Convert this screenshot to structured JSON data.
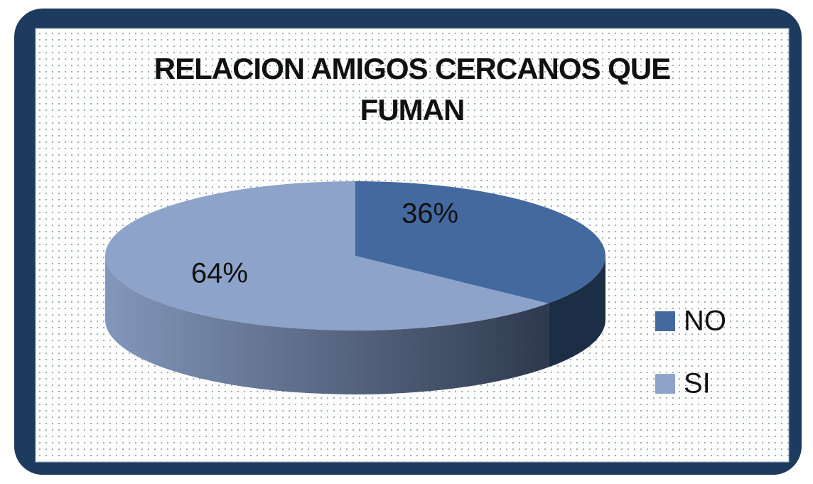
{
  "chart_data": {
    "type": "pie",
    "title": "RELACION AMIGOS CERCANOS QUE FUMAN",
    "categories": [
      "NO",
      "SI"
    ],
    "values": [
      36,
      64
    ],
    "value_labels": [
      "36%",
      "64%"
    ],
    "colors": [
      "#44699f",
      "#8ea3c9"
    ],
    "legend": "right"
  }
}
